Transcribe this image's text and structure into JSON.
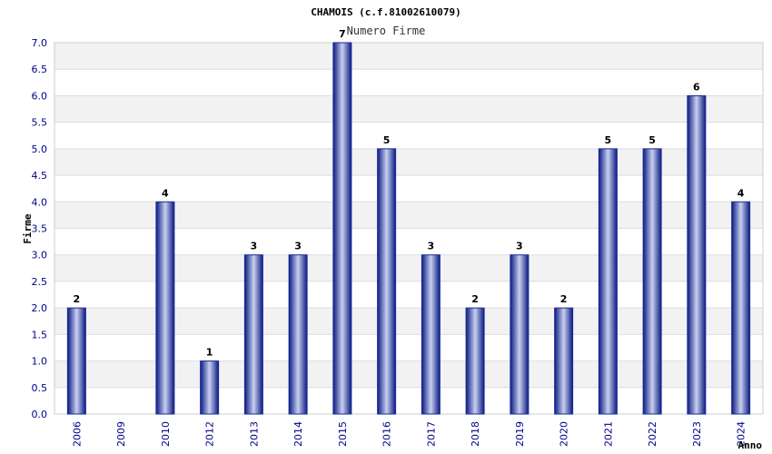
{
  "chart_data": {
    "type": "bar",
    "title": "CHAMOIS (c.f.81002610079)",
    "subtitle": "Numero Firme",
    "xlabel": "Anno",
    "ylabel": "Firme",
    "categories": [
      "2006",
      "2009",
      "2010",
      "2012",
      "2013",
      "2014",
      "2015",
      "2016",
      "2017",
      "2018",
      "2019",
      "2020",
      "2021",
      "2022",
      "2023",
      "2024"
    ],
    "values": [
      2,
      0,
      4,
      1,
      3,
      3,
      7,
      5,
      3,
      2,
      3,
      2,
      5,
      5,
      6,
      4
    ],
    "data_labels": [
      "2",
      "",
      "4",
      "1",
      "3",
      "3",
      "7",
      "5",
      "3",
      "2",
      "3",
      "2",
      "5",
      "5",
      "6",
      "4"
    ],
    "ylim": [
      0,
      7
    ],
    "yticks": [
      "0.0",
      "0.5",
      "1.0",
      "1.5",
      "2.0",
      "2.5",
      "3.0",
      "3.5",
      "4.0",
      "4.5",
      "5.0",
      "5.5",
      "6.0",
      "6.5",
      "7.0"
    ],
    "grid": true,
    "colors": {
      "bar": "#1a2a9a",
      "bar_highlight": "#c8d0f0",
      "band": "#f2f2f2",
      "tick": "#00008b"
    }
  }
}
